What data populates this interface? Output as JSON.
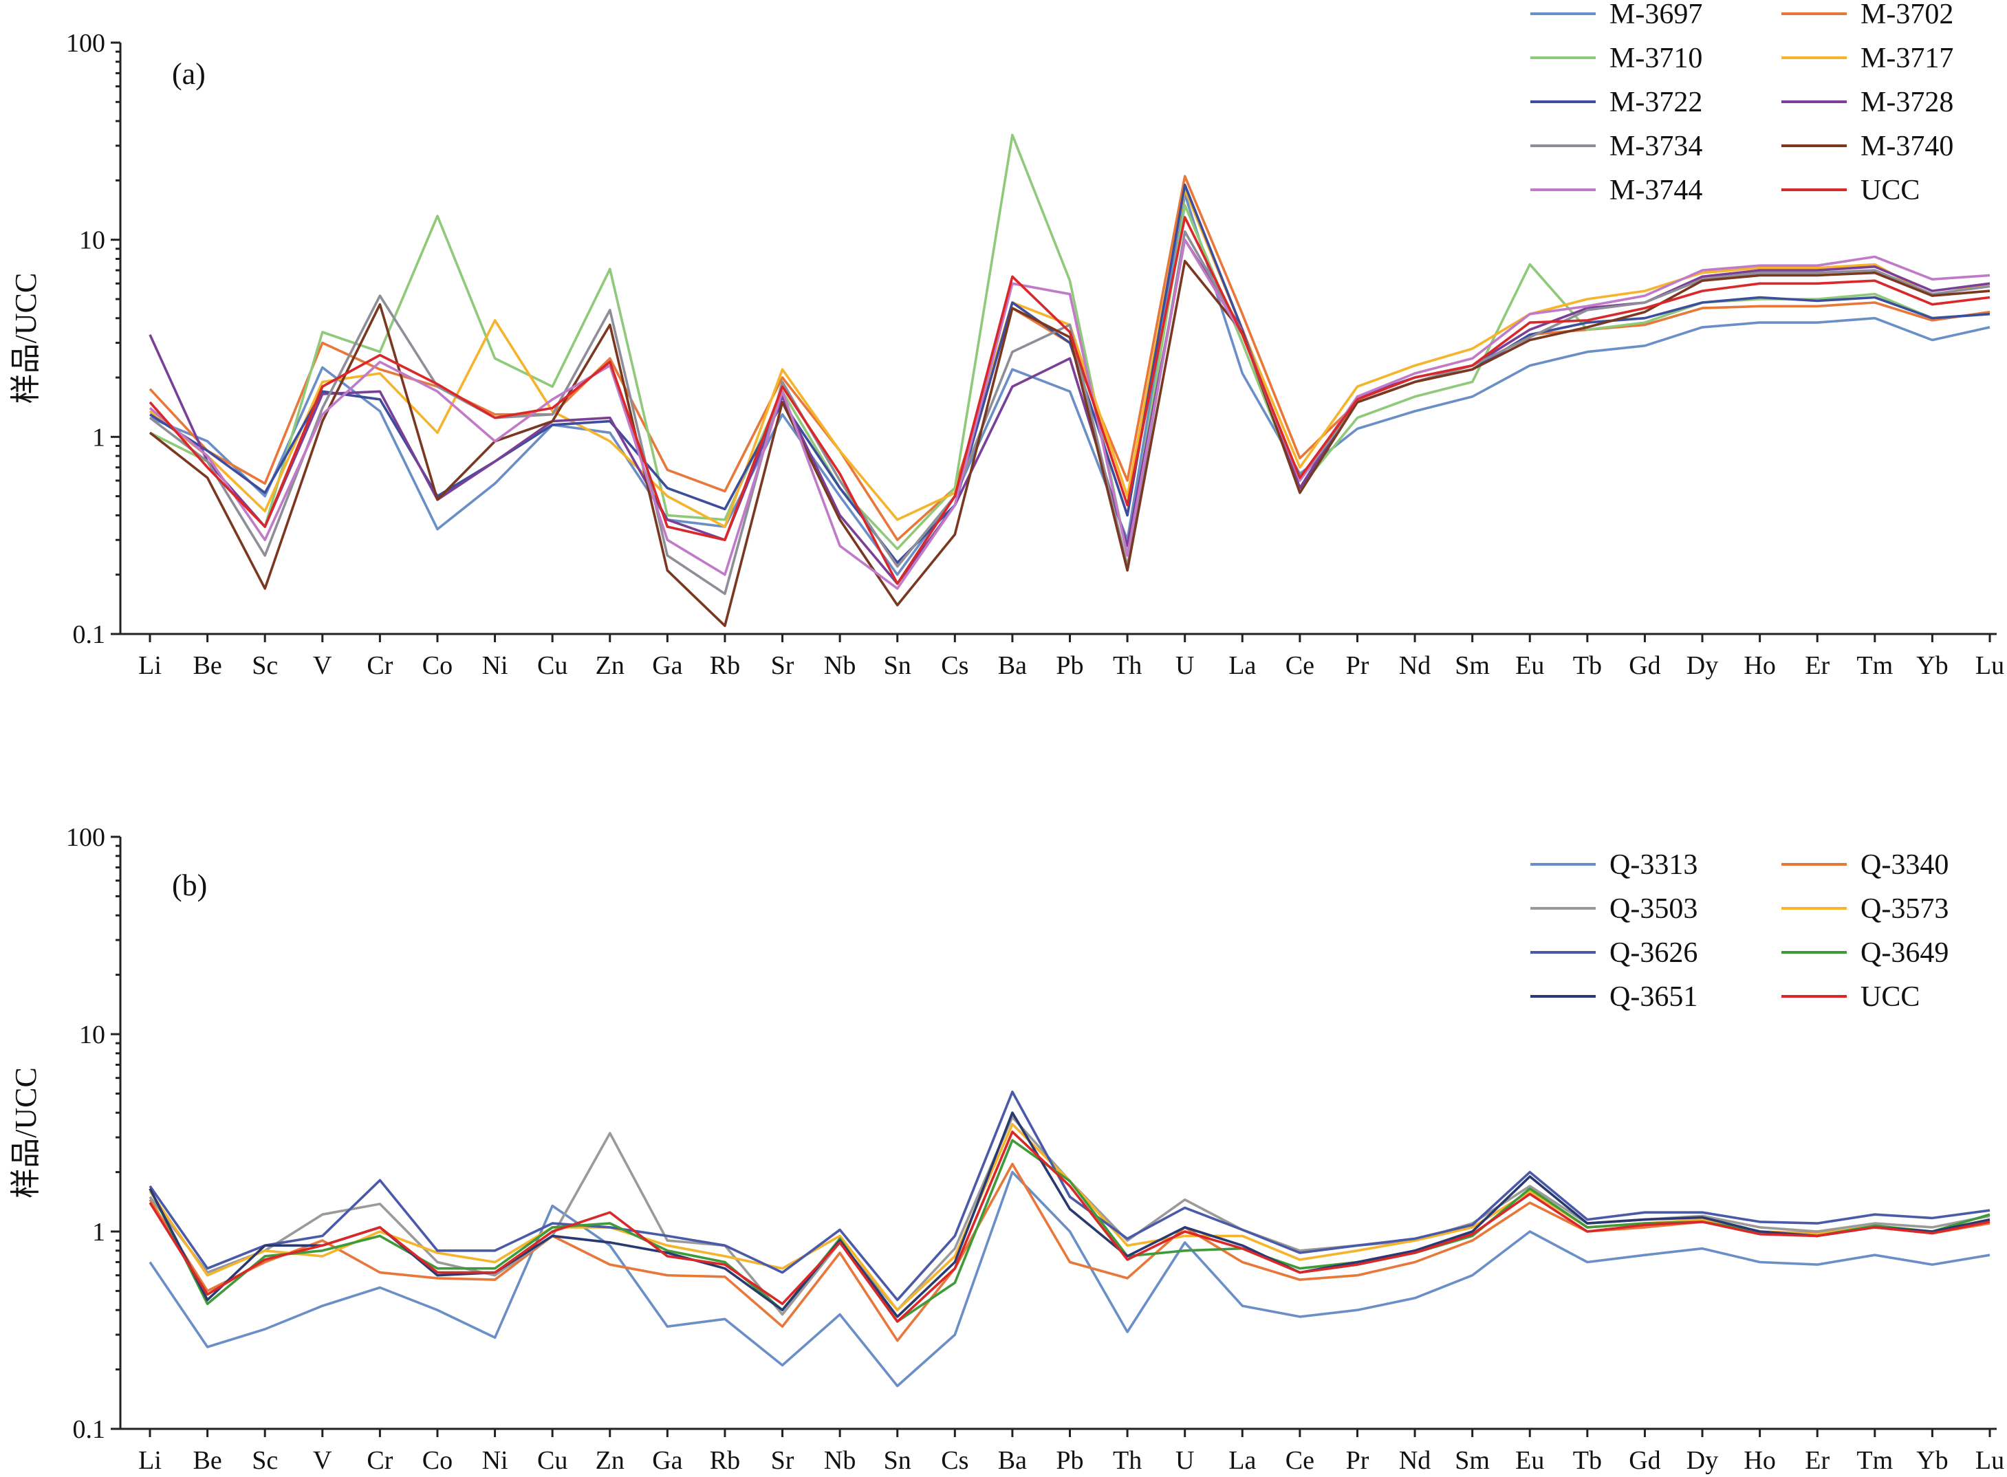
{
  "chart_data": [
    {
      "type": "line",
      "panel_label": "(a)",
      "ylabel": "样品/UCC",
      "y_scale": "log",
      "ylim": [
        0.1,
        100
      ],
      "y_ticks": [
        "0.1",
        "1",
        "10",
        "100"
      ],
      "grid": false,
      "legend_position": "top-right",
      "categories": [
        "Li",
        "Be",
        "Sc",
        "V",
        "Cr",
        "Co",
        "Ni",
        "Cu",
        "Zn",
        "Ga",
        "Rb",
        "Sr",
        "Nb",
        "Sn",
        "Cs",
        "Ba",
        "Pb",
        "Th",
        "U",
        "La",
        "Ce",
        "Pr",
        "Nd",
        "Sm",
        "Eu",
        "Tb",
        "Gd",
        "Dy",
        "Ho",
        "Er",
        "Tm",
        "Yb",
        "Lu"
      ],
      "series": [
        {
          "name": "M-3697",
          "color": "#6a8fc7",
          "values": [
            1.25,
            0.95,
            0.5,
            2.25,
            1.35,
            0.34,
            0.58,
            1.15,
            1.05,
            0.38,
            0.35,
            1.3,
            0.5,
            0.2,
            0.5,
            2.2,
            1.7,
            0.3,
            17,
            2.1,
            0.65,
            1.1,
            1.35,
            1.6,
            2.3,
            2.7,
            2.9,
            3.6,
            3.8,
            3.8,
            4.0,
            3.1,
            3.6
          ]
        },
        {
          "name": "M-3702",
          "color": "#e8783a",
          "values": [
            1.75,
            0.85,
            0.58,
            3.0,
            2.2,
            1.8,
            1.3,
            1.3,
            2.5,
            0.68,
            0.53,
            2.0,
            0.85,
            0.3,
            0.55,
            4.5,
            3.0,
            0.6,
            21,
            4.2,
            0.78,
            1.5,
            1.9,
            2.2,
            3.3,
            3.5,
            3.7,
            4.5,
            4.6,
            4.6,
            4.8,
            3.9,
            4.3
          ]
        },
        {
          "name": "M-3710",
          "color": "#8fc97a",
          "values": [
            1.05,
            0.75,
            0.35,
            3.4,
            2.7,
            13.2,
            2.5,
            1.8,
            7.1,
            0.4,
            0.38,
            1.7,
            0.55,
            0.27,
            0.55,
            34,
            6.2,
            0.25,
            15,
            3.0,
            0.55,
            1.25,
            1.6,
            1.9,
            7.5,
            3.5,
            3.8,
            4.8,
            5.0,
            5.0,
            5.3,
            4.0,
            4.2
          ]
        },
        {
          "name": "M-3717",
          "color": "#f5b42c",
          "values": [
            1.35,
            0.8,
            0.42,
            1.9,
            2.1,
            1.05,
            3.9,
            1.35,
            0.95,
            0.5,
            0.35,
            2.2,
            0.85,
            0.38,
            0.52,
            4.8,
            3.7,
            0.5,
            18,
            3.5,
            0.7,
            1.8,
            2.3,
            2.8,
            4.2,
            5.0,
            5.5,
            6.8,
            7.2,
            7.2,
            7.5,
            5.2,
            6.0
          ]
        },
        {
          "name": "M-3722",
          "color": "#3b4d9c",
          "values": [
            1.3,
            0.85,
            0.52,
            1.7,
            1.55,
            0.5,
            0.75,
            1.15,
            1.2,
            0.55,
            0.43,
            1.5,
            0.55,
            0.23,
            0.45,
            4.8,
            3.0,
            0.4,
            19,
            3.5,
            0.55,
            1.5,
            1.9,
            2.2,
            3.3,
            3.8,
            4.0,
            4.8,
            5.1,
            4.9,
            5.1,
            4.0,
            4.2
          ]
        },
        {
          "name": "M-3728",
          "color": "#7a3f96",
          "values": [
            3.3,
            0.75,
            0.35,
            1.65,
            1.7,
            0.48,
            0.75,
            1.2,
            1.25,
            0.38,
            0.3,
            1.6,
            0.4,
            0.18,
            0.45,
            1.8,
            2.5,
            0.28,
            10,
            3.5,
            0.55,
            1.6,
            2.0,
            2.3,
            3.5,
            4.5,
            4.8,
            6.5,
            7.0,
            7.0,
            7.3,
            5.5,
            6.0
          ]
        },
        {
          "name": "M-3734",
          "color": "#8e8e98",
          "values": [
            1.25,
            0.75,
            0.25,
            1.4,
            5.2,
            1.8,
            1.25,
            1.3,
            4.4,
            0.25,
            0.16,
            1.9,
            0.6,
            0.22,
            0.5,
            2.7,
            3.7,
            0.22,
            11,
            3.4,
            0.6,
            1.5,
            1.9,
            2.3,
            3.2,
            4.4,
            4.8,
            6.3,
            6.8,
            6.8,
            7.0,
            5.3,
            5.8
          ]
        },
        {
          "name": "M-3740",
          "color": "#7a3820",
          "values": [
            1.05,
            0.62,
            0.17,
            1.2,
            4.7,
            0.48,
            0.95,
            1.2,
            3.7,
            0.21,
            0.11,
            1.5,
            0.38,
            0.14,
            0.32,
            4.5,
            3.2,
            0.21,
            7.8,
            3.4,
            0.52,
            1.5,
            1.9,
            2.2,
            3.1,
            3.6,
            4.3,
            6.2,
            6.6,
            6.6,
            6.8,
            5.2,
            5.5
          ]
        },
        {
          "name": "M-3744",
          "color": "#c07ac8",
          "values": [
            1.4,
            0.8,
            0.3,
            1.3,
            2.4,
            1.7,
            0.95,
            1.55,
            2.3,
            0.3,
            0.2,
            1.7,
            0.28,
            0.17,
            0.45,
            6.0,
            5.3,
            0.25,
            10,
            3.3,
            0.6,
            1.6,
            2.1,
            2.5,
            4.2,
            4.6,
            5.2,
            7.0,
            7.4,
            7.4,
            8.2,
            6.3,
            6.6
          ]
        },
        {
          "name": "UCC",
          "color": "#d9282a",
          "values": [
            1.5,
            0.7,
            0.35,
            1.8,
            2.6,
            1.85,
            1.25,
            1.4,
            2.4,
            0.35,
            0.3,
            1.8,
            0.65,
            0.18,
            0.5,
            6.5,
            3.4,
            0.45,
            13,
            3.3,
            0.62,
            1.55,
            2.0,
            2.3,
            3.8,
            3.9,
            4.5,
            5.5,
            6.0,
            6.0,
            6.2,
            4.7,
            5.1
          ]
        }
      ]
    },
    {
      "type": "line",
      "panel_label": "(b)",
      "ylabel": "样品/UCC",
      "y_scale": "log",
      "ylim": [
        0.1,
        100
      ],
      "y_ticks": [
        "0.1",
        "1",
        "10",
        "100"
      ],
      "grid": false,
      "legend_position": "top-right",
      "categories": [
        "Li",
        "Be",
        "Sc",
        "V",
        "Cr",
        "Co",
        "Ni",
        "Cu",
        "Zn",
        "Ga",
        "Rb",
        "Sr",
        "Nb",
        "Sn",
        "Cs",
        "Ba",
        "Pb",
        "Th",
        "U",
        "La",
        "Ce",
        "Pr",
        "Nd",
        "Sm",
        "Eu",
        "Tb",
        "Gd",
        "Dy",
        "Ho",
        "Er",
        "Tm",
        "Yb",
        "Lu"
      ],
      "series": [
        {
          "name": "Q-3313",
          "color": "#6a8fc7",
          "values": [
            0.7,
            0.26,
            0.32,
            0.42,
            0.52,
            0.4,
            0.29,
            1.35,
            0.85,
            0.33,
            0.36,
            0.21,
            0.38,
            0.165,
            0.3,
            2.0,
            1.0,
            0.31,
            0.88,
            0.42,
            0.37,
            0.4,
            0.46,
            0.6,
            1.0,
            0.7,
            0.76,
            0.82,
            0.7,
            0.68,
            0.76,
            0.68,
            0.76
          ]
        },
        {
          "name": "Q-3340",
          "color": "#e8783a",
          "values": [
            1.45,
            0.5,
            0.7,
            0.9,
            0.62,
            0.58,
            0.57,
            0.95,
            0.68,
            0.6,
            0.59,
            0.33,
            0.78,
            0.28,
            0.65,
            2.2,
            0.7,
            0.58,
            1.05,
            0.7,
            0.57,
            0.6,
            0.7,
            0.9,
            1.4,
            1.0,
            1.05,
            1.12,
            1.0,
            0.98,
            1.05,
            0.98,
            1.1
          ]
        },
        {
          "name": "Q-3503",
          "color": "#9a9a9a",
          "values": [
            1.5,
            0.62,
            0.8,
            1.22,
            1.38,
            0.7,
            0.6,
            0.95,
            3.15,
            0.9,
            0.85,
            0.38,
            0.88,
            0.4,
            0.82,
            3.8,
            1.8,
            0.9,
            1.45,
            1.02,
            0.8,
            0.85,
            0.9,
            1.1,
            1.7,
            1.1,
            1.15,
            1.2,
            1.05,
            1.0,
            1.1,
            1.05,
            1.2
          ]
        },
        {
          "name": "Q-3573",
          "color": "#f5b42c",
          "values": [
            1.6,
            0.6,
            0.8,
            0.75,
            1.0,
            0.78,
            0.7,
            1.05,
            1.05,
            0.85,
            0.75,
            0.65,
            0.95,
            0.4,
            0.75,
            3.5,
            1.8,
            0.85,
            0.95,
            0.95,
            0.72,
            0.8,
            0.9,
            1.05,
            1.6,
            1.05,
            1.1,
            1.15,
            1.0,
            0.97,
            1.07,
            1.0,
            1.15
          ]
        },
        {
          "name": "Q-3626",
          "color": "#4a5aa8",
          "values": [
            1.7,
            0.65,
            0.85,
            0.95,
            1.82,
            0.8,
            0.8,
            1.1,
            1.05,
            0.95,
            0.85,
            0.62,
            1.02,
            0.45,
            0.95,
            5.1,
            1.5,
            0.92,
            1.32,
            1.02,
            0.78,
            0.85,
            0.92,
            1.08,
            2.0,
            1.15,
            1.25,
            1.25,
            1.12,
            1.1,
            1.22,
            1.17,
            1.28
          ]
        },
        {
          "name": "Q-3649",
          "color": "#3f9a3a",
          "values": [
            1.65,
            0.43,
            0.75,
            0.8,
            0.95,
            0.65,
            0.65,
            1.05,
            1.1,
            0.8,
            0.7,
            0.4,
            0.92,
            0.35,
            0.55,
            2.9,
            1.8,
            0.75,
            0.8,
            0.82,
            0.65,
            0.7,
            0.78,
            0.95,
            1.65,
            1.05,
            1.1,
            1.12,
            1.0,
            0.95,
            1.07,
            1.0,
            1.22
          ]
        },
        {
          "name": "Q-3651",
          "color": "#2a3a70",
          "values": [
            1.65,
            0.45,
            0.85,
            0.85,
            1.05,
            0.6,
            0.62,
            0.95,
            0.88,
            0.78,
            0.65,
            0.4,
            0.9,
            0.37,
            0.7,
            4.0,
            1.3,
            0.75,
            1.05,
            0.85,
            0.62,
            0.7,
            0.8,
            1.0,
            1.9,
            1.1,
            1.15,
            1.18,
            1.0,
            0.95,
            1.05,
            1.0,
            1.15
          ]
        },
        {
          "name": "UCC",
          "color": "#d9282a",
          "values": [
            1.4,
            0.48,
            0.72,
            0.85,
            1.05,
            0.62,
            0.62,
            1.0,
            1.25,
            0.75,
            0.68,
            0.43,
            0.88,
            0.35,
            0.65,
            3.2,
            1.7,
            0.72,
            1.0,
            0.82,
            0.62,
            0.68,
            0.78,
            0.97,
            1.55,
            1.0,
            1.08,
            1.12,
            0.97,
            0.95,
            1.05,
            0.98,
            1.12
          ]
        }
      ]
    }
  ]
}
